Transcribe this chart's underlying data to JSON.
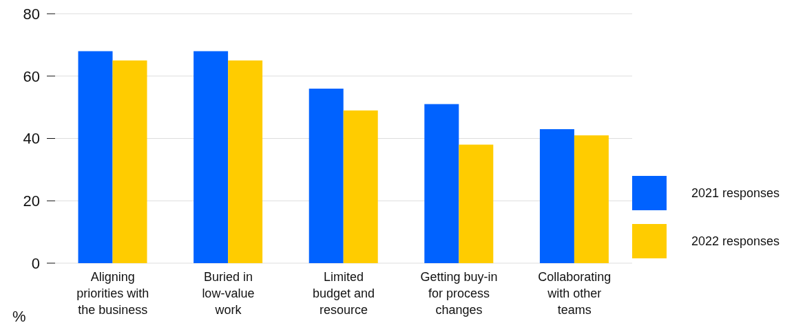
{
  "chart_data": {
    "type": "bar",
    "ylabel": "%",
    "categories": [
      "Aligning\npriorities with\nthe business",
      "Buried in\nlow-value\nwork",
      "Limited\nbudget and\nresource",
      "Getting buy-in\nfor process\nchanges",
      "Collaborating\nwith other\nteams"
    ],
    "series": [
      {
        "name": "2021 responses",
        "color": "#0062ff",
        "values": [
          68,
          68,
          56,
          51,
          43
        ]
      },
      {
        "name": "2022 responses",
        "color": "#ffcc00",
        "values": [
          65,
          65,
          49,
          38,
          41
        ]
      }
    ],
    "ylim": [
      0,
      80
    ],
    "yticks": [
      0,
      20,
      40,
      60,
      80
    ],
    "grid": "y",
    "legend": "right"
  }
}
